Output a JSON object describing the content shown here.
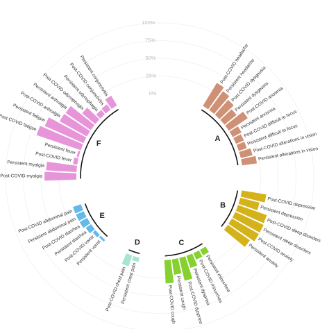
{
  "chart_data": {
    "type": "bar",
    "polar": true,
    "radial_axis": {
      "ticks": [
        "0%",
        "25%",
        "50%",
        "75%",
        "100%"
      ],
      "range": [
        0,
        100
      ]
    },
    "groups": [
      {
        "id": "A",
        "color": "#cf9176",
        "items": [
          {
            "label": "Post-COVID headache",
            "value": 38
          },
          {
            "label": "Persistent headache",
            "value": 33
          },
          {
            "label": "Post-COVID dysgeusia",
            "value": 28
          },
          {
            "label": "Persistent dysgeusia",
            "value": 22
          },
          {
            "label": "Post-COVID anosmia",
            "value": 32
          },
          {
            "label": "Persistent anosmia",
            "value": 14
          },
          {
            "label": "Post-COVID difficult to focus",
            "value": 12
          },
          {
            "label": "Persistent difficult to focus",
            "value": 12
          },
          {
            "label": "Post-COVID alterations in vision",
            "value": 17
          },
          {
            "label": "Persistent alterations in vision",
            "value": 21
          }
        ]
      },
      {
        "id": "B",
        "color": "#d4b31a",
        "items": [
          {
            "label": "Post-COVID depression",
            "value": 35
          },
          {
            "label": "Persistent depression",
            "value": 28
          },
          {
            "label": "Post-COVID sleep disorders",
            "value": 43
          },
          {
            "label": "Persistent sleep disorders",
            "value": 44
          },
          {
            "label": "Post-COVID anxiety",
            "value": 44
          },
          {
            "label": "Persistent anxiety",
            "value": 38
          }
        ]
      },
      {
        "id": "C",
        "color": "#86d130",
        "items": [
          {
            "label": "Persistent rhinorrhea",
            "value": 9
          },
          {
            "label": "Post-COVID rhinorrhea",
            "value": 10
          },
          {
            "label": "Persistent dyspnea",
            "value": 18
          },
          {
            "label": "Post-COVID dyspnea",
            "value": 33
          },
          {
            "label": "Persistent cough",
            "value": 22
          },
          {
            "label": "Post-COVID cough",
            "value": 33
          }
        ]
      },
      {
        "id": "D",
        "color": "#a6e6cf",
        "items": [
          {
            "label": "Persistent chest pain",
            "value": 6
          },
          {
            "label": "Post-COVID chest pain",
            "value": 16
          }
        ]
      },
      {
        "id": "E",
        "color": "#62b9ea",
        "items": [
          {
            "label": "Persistent vomit",
            "value": 3
          },
          {
            "label": "Post-COVID vomit",
            "value": 5
          },
          {
            "label": "Persistent diarrhea",
            "value": 9
          },
          {
            "label": "Post-COVID diarrhea",
            "value": 12
          },
          {
            "label": "Persistent abdominal pain",
            "value": 12
          },
          {
            "label": "Post-COVID abdominal pain",
            "value": 12
          }
        ]
      },
      {
        "id": "F",
        "color": "#e695d9",
        "items": [
          {
            "label": "Post-COVID myalgia",
            "value": 45
          },
          {
            "label": "Persistent myalgia",
            "value": 43
          },
          {
            "label": "Post-COVID fever",
            "value": 6
          },
          {
            "label": "Persistent fever",
            "value": 3
          },
          {
            "label": "Post-COVID fatigue",
            "value": 66
          },
          {
            "label": "Persistent fatigue",
            "value": 60
          },
          {
            "label": "Post-COVID arthralgia",
            "value": 44
          },
          {
            "label": "Persistent arthralgia",
            "value": 43
          },
          {
            "label": "Post-COVID odynophagia",
            "value": 24
          },
          {
            "label": "Persistent odynophagia",
            "value": 8
          },
          {
            "label": "Post-COVID conjunctivitis",
            "value": 9
          },
          {
            "label": "Persistent conjunctivitis",
            "value": 16
          }
        ]
      }
    ]
  }
}
